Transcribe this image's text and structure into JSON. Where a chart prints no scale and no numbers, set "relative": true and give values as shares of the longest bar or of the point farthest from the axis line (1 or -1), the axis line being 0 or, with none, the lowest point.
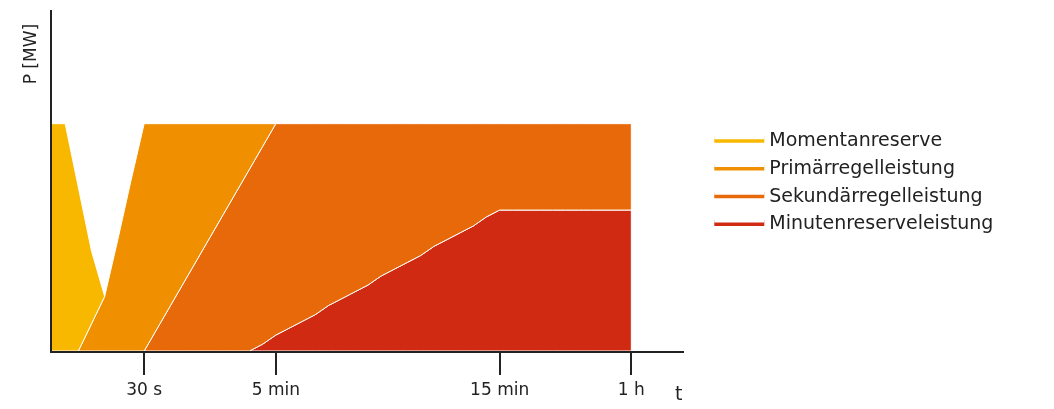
{
  "chart_data": {
    "type": "area",
    "stacked": true,
    "relative": true,
    "xlabel": "t",
    "ylabel": "P [MW]",
    "categories": [
      null,
      null,
      null,
      null,
      null,
      null,
      null,
      "30 s",
      null,
      null,
      null,
      null,
      null,
      null,
      null,
      null,
      null,
      "5 min",
      null,
      null,
      null,
      null,
      null,
      null,
      null,
      null,
      null,
      null,
      null,
      null,
      null,
      null,
      null,
      null,
      "15 min",
      null,
      null,
      null,
      null,
      null,
      null,
      null,
      null,
      null,
      "1 h"
    ],
    "series": [
      {
        "name": "Minutenreserveleistung",
        "color": "#d02a12",
        "values": [
          null,
          null,
          null,
          null,
          null,
          null,
          null,
          null,
          null,
          null,
          null,
          null,
          null,
          null,
          null,
          0,
          0.03,
          0.07,
          0.1,
          0.13,
          0.16,
          0.2,
          0.23,
          0.26,
          0.29,
          0.33,
          0.36,
          0.39,
          0.42,
          0.46,
          0.49,
          0.52,
          0.55,
          0.59,
          0.62,
          0.62,
          0.62,
          0.62,
          0.62,
          0.62,
          0.62,
          0.62,
          0.62,
          0.62,
          0.62
        ]
      },
      {
        "name": "Sekundärregelleistung",
        "color": "#e8690a",
        "values": [
          null,
          null,
          null,
          null,
          null,
          null,
          null,
          0,
          0.1,
          0.2,
          0.3,
          0.4,
          0.5,
          0.6,
          0.7,
          0.8,
          0.87,
          0.93,
          0.9,
          0.87,
          0.84,
          0.8,
          0.77,
          0.74,
          0.71,
          0.67,
          0.64,
          0.61,
          0.58,
          0.54,
          0.51,
          0.48,
          0.45,
          0.41,
          0.38,
          0.38,
          0.38,
          0.38,
          0.38,
          0.38,
          0.38,
          0.38,
          0.38,
          0.38,
          0.38
        ]
      },
      {
        "name": "Primärregelleistung",
        "color": "#f09000",
        "values": [
          null,
          null,
          0,
          0.12,
          0.24,
          0.49,
          0.75,
          1,
          0.9,
          0.8,
          0.7,
          0.6,
          0.5,
          0.4,
          0.3,
          0.2,
          0.1,
          0,
          null,
          null,
          null,
          null,
          null,
          null,
          null,
          null,
          null,
          null,
          null,
          null,
          null,
          null,
          null,
          null,
          null,
          null,
          null,
          null,
          null,
          null,
          null,
          null,
          null,
          null,
          null
        ]
      },
      {
        "name": "Momentanreserve",
        "color": "#f9b800",
        "values": [
          1,
          1,
          0.72,
          0.32,
          0,
          null,
          null,
          null,
          null,
          null,
          null,
          null,
          null,
          null,
          null,
          null,
          null,
          null,
          null,
          null,
          null,
          null,
          null,
          null,
          null,
          null,
          null,
          null,
          null,
          null,
          null,
          null,
          null,
          null,
          null,
          null,
          null,
          null,
          null,
          null,
          null,
          null,
          null,
          null,
          null
        ]
      }
    ],
    "legend": "right"
  }
}
